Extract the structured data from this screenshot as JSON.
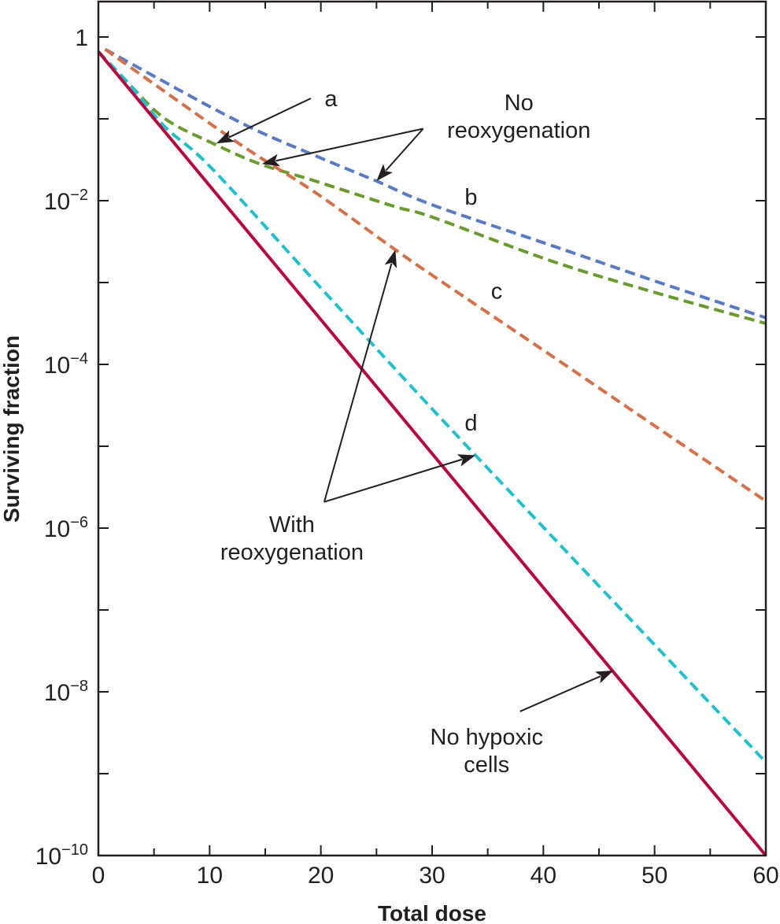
{
  "chart_data": {
    "type": "line",
    "title": "",
    "xlabel": "Total dose",
    "ylabel": "Surviving fraction",
    "xlim": [
      0,
      60
    ],
    "ylim_log10": [
      -10,
      0.2
    ],
    "yscale": "log",
    "grid": false,
    "x_ticks": [
      0,
      10,
      20,
      30,
      40,
      50,
      60
    ],
    "x_tick_labels": [
      "0",
      "10",
      "20",
      "30",
      "40",
      "50",
      "60"
    ],
    "x_minor_ticks": [
      5,
      15,
      25,
      35,
      45,
      55
    ],
    "y_ticks_log10": [
      0,
      -1,
      -2,
      -3,
      -4,
      -5,
      -6,
      -7,
      -8,
      -9,
      -10
    ],
    "y_tick_labels": [
      {
        "log10": 0,
        "base": "1",
        "exp": ""
      },
      {
        "log10": -2,
        "base": "10",
        "exp": "−2"
      },
      {
        "log10": -4,
        "base": "10",
        "exp": "−4"
      },
      {
        "log10": -6,
        "base": "10",
        "exp": "−6"
      },
      {
        "log10": -8,
        "base": "10",
        "exp": "−8"
      },
      {
        "log10": -10,
        "base": "10",
        "exp": "−10"
      }
    ],
    "series": [
      {
        "name": "b (no reoxygenation)",
        "color": "#5b7ac4",
        "style": "dashed",
        "points_log10": [
          [
            0.6,
            -0.15
          ],
          [
            12.4,
            -1.02
          ],
          [
            19.5,
            -1.45
          ],
          [
            25.0,
            -1.76
          ],
          [
            30.0,
            -2.05
          ],
          [
            40.8,
            -2.55
          ],
          [
            50.0,
            -2.98
          ],
          [
            60.0,
            -3.43
          ]
        ]
      },
      {
        "name": "a (no reoxygenation)",
        "color": "#6b9a2e",
        "style": "dashed",
        "points_log10": [
          [
            0.0,
            -0.18
          ],
          [
            2.8,
            -0.58
          ],
          [
            6.0,
            -1.0
          ],
          [
            10.3,
            -1.3
          ],
          [
            14.5,
            -1.55
          ],
          [
            19.5,
            -1.76
          ],
          [
            26.6,
            -2.07
          ],
          [
            30.0,
            -2.2
          ],
          [
            40.8,
            -2.74
          ],
          [
            50.0,
            -3.12
          ],
          [
            60.0,
            -3.5
          ]
        ]
      },
      {
        "name": "c (with reoxygenation)",
        "color": "#d4714a",
        "style": "dashed",
        "points_log10": [
          [
            0.6,
            -0.15
          ],
          [
            12.4,
            -1.28
          ],
          [
            19.5,
            -1.9
          ],
          [
            26.7,
            -2.6
          ],
          [
            30.0,
            -2.91
          ],
          [
            40.8,
            -3.9
          ],
          [
            50.0,
            -4.75
          ],
          [
            60.0,
            -5.67
          ]
        ]
      },
      {
        "name": "d (with reoxygenation)",
        "color": "#22c0cc",
        "style": "dashed",
        "points_log10": [
          [
            0.0,
            -0.18
          ],
          [
            2.8,
            -0.58
          ],
          [
            6.0,
            -1.1
          ],
          [
            10.3,
            -1.62
          ],
          [
            20.9,
            -3.2
          ],
          [
            33.9,
            -5.11
          ],
          [
            60.0,
            -8.86
          ]
        ]
      },
      {
        "name": "No hypoxic cells",
        "color": "#b5083f",
        "style": "solid",
        "points_log10": [
          [
            0.0,
            -0.18
          ],
          [
            60.0,
            -10.0
          ]
        ]
      }
    ],
    "annotations": [
      {
        "id": "label-a",
        "lines": [
          "a"
        ],
        "x": 20.9,
        "log10": -0.75,
        "anchor": "middle"
      },
      {
        "id": "label-no-reox",
        "lines": [
          "No",
          "reoxygenation"
        ],
        "x": 37.8,
        "log10": -0.8,
        "anchor": "middle"
      },
      {
        "id": "label-b",
        "lines": [
          "b"
        ],
        "x": 33.5,
        "log10": -1.95,
        "anchor": "middle"
      },
      {
        "id": "label-c",
        "lines": [
          "c"
        ],
        "x": 35.8,
        "log10": -3.1,
        "anchor": "middle"
      },
      {
        "id": "label-d",
        "lines": [
          "d"
        ],
        "x": 33.5,
        "log10": -4.71,
        "anchor": "middle"
      },
      {
        "id": "label-with-reox",
        "lines": [
          "With",
          "reoxygenation"
        ],
        "x": 17.4,
        "log10": -5.95,
        "anchor": "middle"
      },
      {
        "id": "label-no-hypoxic",
        "lines": [
          "No hypoxic",
          "cells"
        ],
        "x": 34.9,
        "log10": -8.55,
        "anchor": "middle"
      }
    ],
    "arrows": [
      {
        "id": "arrow-a",
        "from": [
          19.1,
          -0.75
        ],
        "to": [
          10.6,
          -1.3
        ]
      },
      {
        "id": "arrow-no-reox-1",
        "from": [
          29.2,
          -1.12
        ],
        "to": [
          14.7,
          -1.55
        ]
      },
      {
        "id": "arrow-no-reox-2",
        "from": [
          29.2,
          -1.12
        ],
        "to": [
          25.0,
          -1.76
        ]
      },
      {
        "id": "arrow-with-reox-1",
        "from": [
          20.3,
          -5.68
        ],
        "to": [
          26.7,
          -2.6
        ]
      },
      {
        "id": "arrow-with-reox-2",
        "from": [
          20.3,
          -5.68
        ],
        "to": [
          33.9,
          -5.11
        ]
      },
      {
        "id": "arrow-no-hypoxic",
        "from": [
          37.9,
          -8.24
        ],
        "to": [
          46.3,
          -7.74
        ]
      }
    ]
  }
}
